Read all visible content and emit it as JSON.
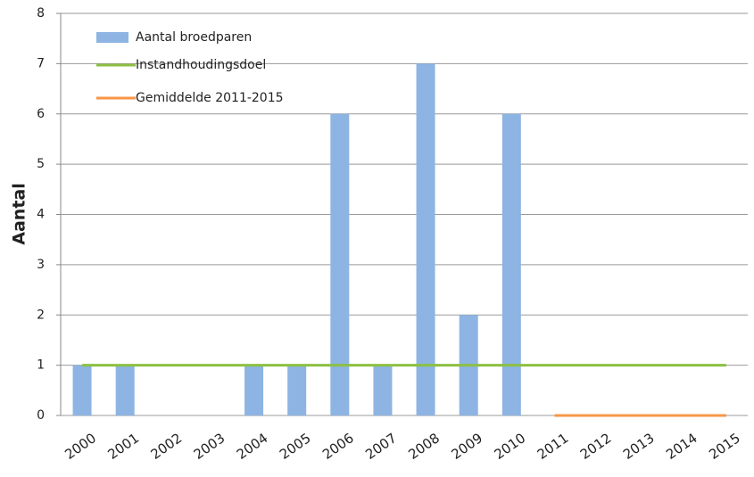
{
  "chart_data": {
    "type": "bar",
    "y_label": "Aantal",
    "categories": [
      "2000",
      "2001",
      "2002",
      "2003",
      "2004",
      "2005",
      "2006",
      "2007",
      "2008",
      "2009",
      "2010",
      "2011",
      "2012",
      "2013",
      "2014",
      "2015"
    ],
    "series": [
      {
        "name": "Aantal broedparen",
        "type": "bar",
        "color": "#8db4e2",
        "values": [
          1,
          1,
          0,
          0,
          1,
          1,
          6,
          1,
          7,
          2,
          6,
          0,
          0,
          0,
          0,
          0
        ]
      },
      {
        "name": "Instandhoudingsdoel",
        "type": "line",
        "color": "#8cc043",
        "values": [
          1,
          1,
          1,
          1,
          1,
          1,
          1,
          1,
          1,
          1,
          1,
          1,
          1,
          1,
          1,
          1
        ]
      },
      {
        "name": "Gemiddelde 2011-2015",
        "type": "line",
        "color": "#f79646",
        "values": [
          null,
          null,
          null,
          null,
          null,
          null,
          null,
          null,
          null,
          null,
          null,
          0,
          0,
          0,
          0,
          0
        ]
      }
    ],
    "ylim": [
      0,
      8
    ],
    "yticks": [
      0,
      1,
      2,
      3,
      4,
      5,
      6,
      7,
      8
    ],
    "grid": true,
    "legend": "top-left"
  }
}
